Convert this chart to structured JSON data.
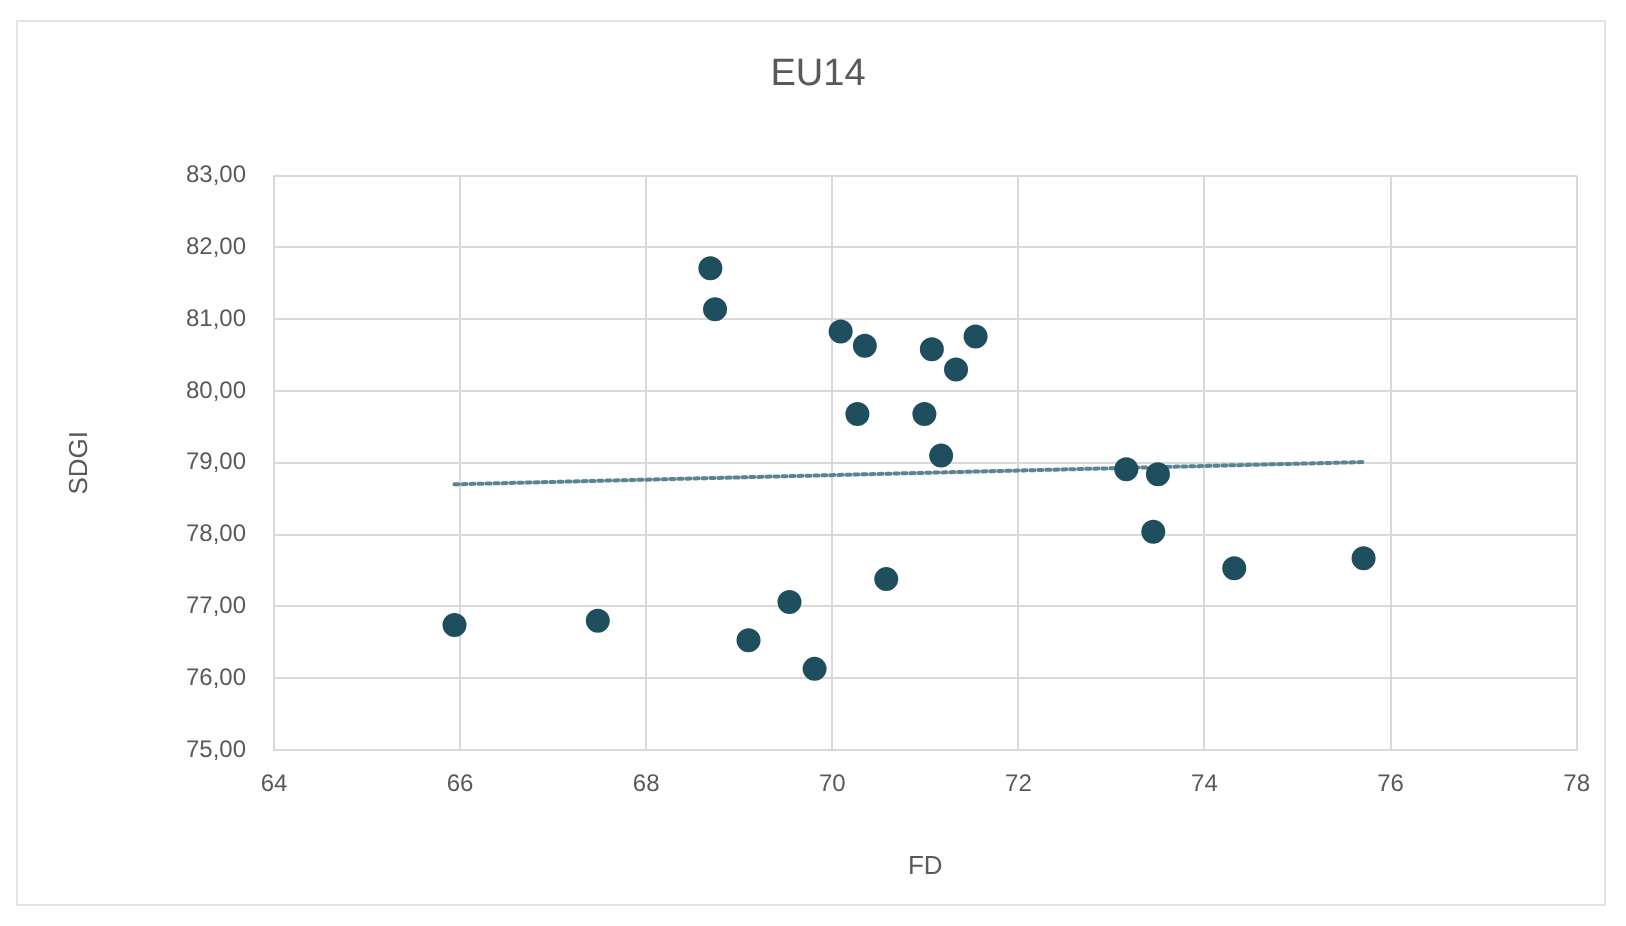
{
  "chart_data": {
    "type": "scatter",
    "title": "EU14",
    "xlabel": "FD",
    "ylabel": "SDGI",
    "xlim": [
      64,
      78
    ],
    "xticks": [
      64,
      66,
      68,
      70,
      72,
      74,
      76,
      78
    ],
    "ylim": [
      75,
      83
    ],
    "yticks": [
      {
        "value": 75,
        "label": "75,00"
      },
      {
        "value": 76,
        "label": "76,00"
      },
      {
        "value": 77,
        "label": "77,00"
      },
      {
        "value": 78,
        "label": "78,00"
      },
      {
        "value": 79,
        "label": "79,00"
      },
      {
        "value": 80,
        "label": "80,00"
      },
      {
        "value": 81,
        "label": "81,00"
      },
      {
        "value": 82,
        "label": "82,00"
      },
      {
        "value": 83,
        "label": "83,00"
      }
    ],
    "grid": true,
    "legend": false,
    "marker": "circle",
    "series": [
      {
        "color": "#1f4e5e",
        "x": [
          65.94,
          67.48,
          69.1,
          69.54,
          69.81,
          70.58,
          73.45,
          74.32,
          75.71,
          68.69,
          68.74,
          70.09,
          70.35,
          70.27,
          71.07,
          71.54,
          71.33,
          70.99,
          71.17,
          73.16,
          73.5
        ],
        "values": [
          76.74,
          76.8,
          76.53,
          77.06,
          76.13,
          77.38,
          78.04,
          77.53,
          77.67,
          81.71,
          81.14,
          80.83,
          80.63,
          79.68,
          80.58,
          80.76,
          80.3,
          79.68,
          79.1,
          78.91,
          78.84
        ]
      },
      {
        "type": "line",
        "color": "#5a8494",
        "line_style": "dotted",
        "marker": "none",
        "x": [
          65.94,
          75.71
        ],
        "values": [
          78.7,
          79.01
        ]
      }
    ]
  }
}
